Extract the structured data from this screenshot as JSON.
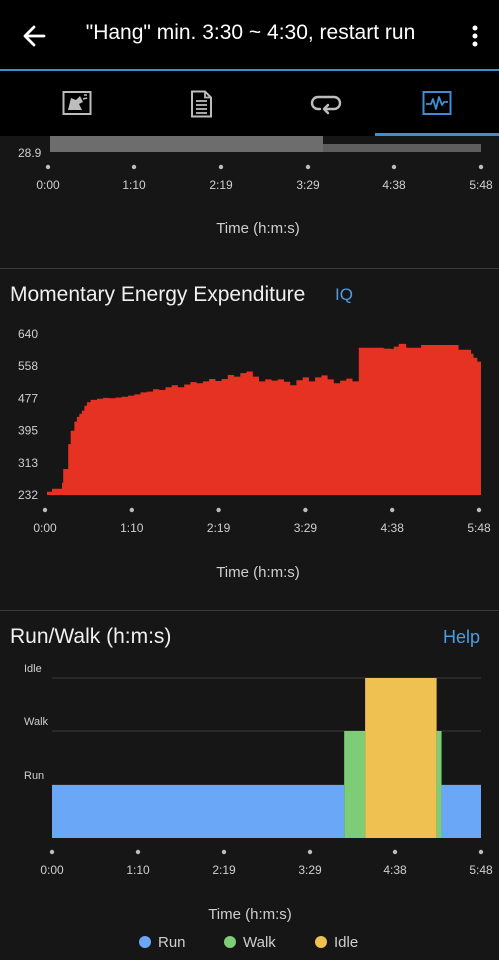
{
  "app_bar": {
    "title": "\"Hang\" min. 3:30 ~ 4:30, restart run",
    "back_icon": "arrow-left-icon",
    "more_icon": "more-vertical-icon"
  },
  "tabs": [
    {
      "icon": "map-icon",
      "active": false
    },
    {
      "icon": "details-list-icon",
      "active": false
    },
    {
      "icon": "laps-loop-icon",
      "active": false
    },
    {
      "icon": "charts-icon",
      "active": true
    }
  ],
  "colors": {
    "accent": "#3f8ed3",
    "energy_fill": "#e63222",
    "run": "#6aa8f7",
    "walk": "#7dcc78",
    "idle": "#eec150"
  },
  "top_chart": {
    "y_tick_label": "28.9",
    "x_ticks": [
      "0:00",
      "1:10",
      "2:19",
      "3:29",
      "4:38",
      "5:48"
    ],
    "xlabel": "Time (h:m:s)"
  },
  "chart_data": [
    {
      "type": "area",
      "title": "Momentary Energy Expenditure",
      "badge": "IQ",
      "xlabel": "Time (h:m:s)",
      "ylabel": "",
      "x_ticks": [
        "0:00",
        "1:10",
        "2:19",
        "3:29",
        "4:38",
        "5:48"
      ],
      "y_ticks": [
        "232",
        "313",
        "395",
        "477",
        "558",
        "640"
      ],
      "xlim_seconds": [
        0,
        348
      ],
      "ylim": [
        232,
        640
      ],
      "x_seconds": [
        0,
        4,
        8,
        12,
        13,
        17,
        19,
        22,
        24,
        26,
        28,
        30,
        32,
        35,
        40,
        45,
        50,
        55,
        60,
        65,
        70,
        75,
        80,
        85,
        90,
        95,
        100,
        105,
        110,
        115,
        120,
        125,
        130,
        135,
        140,
        145,
        150,
        155,
        160,
        165,
        170,
        175,
        180,
        185,
        190,
        195,
        200,
        205,
        210,
        215,
        220,
        225,
        230,
        235,
        240,
        245,
        250,
        255,
        260,
        265,
        270,
        276,
        278,
        282,
        288,
        300,
        330,
        340,
        342,
        345,
        348
      ],
      "values": [
        240,
        248,
        248,
        263,
        298,
        361,
        395,
        418,
        430,
        438,
        446,
        458,
        467,
        473,
        476,
        478,
        477,
        479,
        481,
        484,
        487,
        492,
        494,
        500,
        498,
        505,
        510,
        505,
        512,
        518,
        515,
        520,
        526,
        521,
        526,
        536,
        532,
        541,
        545,
        532,
        520,
        525,
        522,
        525,
        519,
        510,
        523,
        530,
        520,
        530,
        535,
        525,
        515,
        522,
        527,
        520,
        605,
        605,
        605,
        605,
        603,
        602,
        608,
        615,
        605,
        612,
        600,
        590,
        580,
        570,
        585
      ]
    },
    {
      "type": "bar",
      "title": "Run/Walk (h:m:s)",
      "help_label": "Help",
      "xlabel": "Time (h:m:s)",
      "ylabel": "",
      "x_ticks": [
        "0:00",
        "1:10",
        "2:19",
        "3:29",
        "4:38",
        "5:48"
      ],
      "y_ticks": [
        "Run",
        "Walk",
        "Idle"
      ],
      "xlim_seconds": [
        0,
        348
      ],
      "legend": [
        "Run",
        "Walk",
        "Idle"
      ],
      "legend_position": "bottom",
      "segments": [
        {
          "state": "Run",
          "start": 0,
          "end": 237
        },
        {
          "state": "Walk",
          "start": 237,
          "end": 254
        },
        {
          "state": "Idle",
          "start": 254,
          "end": 312
        },
        {
          "state": "Walk",
          "start": 312,
          "end": 316
        },
        {
          "state": "Run",
          "start": 316,
          "end": 348
        }
      ]
    }
  ]
}
